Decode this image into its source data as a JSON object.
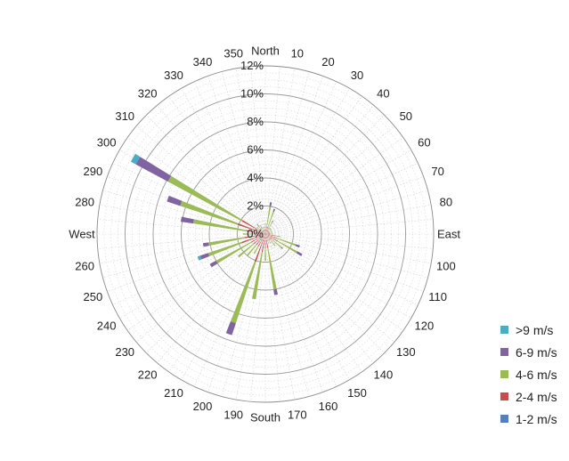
{
  "chart_data": {
    "type": "wind-rose",
    "title": "",
    "radial_unit": "%",
    "radial_range": [
      0,
      12
    ],
    "radial_ticks": [
      "0%",
      "2%",
      "4%",
      "6%",
      "8%",
      "10%",
      "12%"
    ],
    "direction_labels": [
      "North",
      "10",
      "20",
      "30",
      "40",
      "50",
      "60",
      "70",
      "80",
      "East",
      "100",
      "110",
      "120",
      "130",
      "140",
      "150",
      "160",
      "170",
      "South",
      "190",
      "200",
      "210",
      "220",
      "230",
      "240",
      "250",
      "260",
      "West",
      "280",
      "290",
      "300",
      "310",
      "320",
      "330",
      "340",
      "350"
    ],
    "legend_position": "right",
    "series": [
      {
        "name": "1-2 m/s",
        "color": "#4F81BD"
      },
      {
        "name": "2-4 m/s",
        "color": "#C0504D"
      },
      {
        "name": "4-6 m/s",
        "color": "#9BBB59"
      },
      {
        "name": "6-9 m/s",
        "color": "#8064A2"
      },
      {
        "name": ">9 m/s",
        "color": "#4BACC6"
      }
    ],
    "legend_order": [
      ">9 m/s",
      "6-9 m/s",
      "4-6 m/s",
      "2-4 m/s",
      "1-2 m/s"
    ],
    "bars": [
      {
        "dir": 0,
        "values": [
          0.0,
          0.5,
          0.3,
          0.0,
          0.0
        ]
      },
      {
        "dir": 10,
        "values": [
          0.0,
          0.5,
          1.5,
          0.3,
          0.0
        ]
      },
      {
        "dir": 20,
        "values": [
          0.0,
          0.6,
          1.1,
          0.2,
          0.0
        ]
      },
      {
        "dir": 30,
        "values": [
          0.0,
          0.5,
          0.5,
          0.1,
          0.0
        ]
      },
      {
        "dir": 40,
        "values": [
          0.0,
          0.3,
          0.3,
          0.0,
          0.0
        ]
      },
      {
        "dir": 50,
        "values": [
          0.0,
          0.3,
          0.3,
          0.0,
          0.0
        ]
      },
      {
        "dir": 60,
        "values": [
          0.0,
          0.3,
          0.2,
          0.0,
          0.0
        ]
      },
      {
        "dir": 70,
        "values": [
          0.0,
          0.3,
          0.2,
          0.0,
          0.0
        ]
      },
      {
        "dir": 80,
        "values": [
          0.0,
          0.3,
          0.2,
          0.0,
          0.0
        ]
      },
      {
        "dir": 90,
        "values": [
          0.0,
          0.4,
          0.2,
          0.0,
          0.0
        ]
      },
      {
        "dir": 100,
        "values": [
          0.1,
          0.6,
          0.4,
          0.0,
          0.0
        ]
      },
      {
        "dir": 110,
        "values": [
          0.1,
          0.8,
          1.4,
          0.3,
          0.0
        ]
      },
      {
        "dir": 120,
        "values": [
          0.1,
          0.9,
          1.6,
          0.4,
          0.0
        ]
      },
      {
        "dir": 130,
        "values": [
          0.0,
          0.6,
          0.9,
          0.1,
          0.0
        ]
      },
      {
        "dir": 140,
        "values": [
          0.0,
          0.5,
          0.6,
          0.0,
          0.0
        ]
      },
      {
        "dir": 150,
        "values": [
          0.0,
          0.4,
          0.4,
          0.0,
          0.0
        ]
      },
      {
        "dir": 160,
        "values": [
          0.0,
          0.4,
          0.3,
          0.0,
          0.0
        ]
      },
      {
        "dir": 170,
        "values": [
          0.0,
          1.0,
          3.0,
          0.4,
          0.0
        ]
      },
      {
        "dir": 180,
        "values": [
          0.0,
          1.0,
          0.9,
          0.0,
          0.0
        ]
      },
      {
        "dir": 190,
        "values": [
          0.1,
          1.2,
          3.4,
          0.0,
          0.0
        ]
      },
      {
        "dir": 200,
        "values": [
          0.1,
          2.0,
          4.6,
          0.9,
          0.0
        ]
      },
      {
        "dir": 210,
        "values": [
          0.0,
          1.0,
          0.6,
          0.0,
          0.0
        ]
      },
      {
        "dir": 220,
        "values": [
          0.0,
          1.0,
          1.0,
          0.0,
          0.0
        ]
      },
      {
        "dir": 230,
        "values": [
          0.1,
          1.0,
          1.4,
          0.0,
          0.0
        ]
      },
      {
        "dir": 240,
        "values": [
          0.2,
          1.0,
          2.8,
          0.5,
          0.0
        ]
      },
      {
        "dir": 250,
        "values": [
          0.2,
          1.6,
          2.5,
          0.6,
          0.2
        ]
      },
      {
        "dir": 260,
        "values": [
          0.1,
          1.4,
          2.6,
          0.4,
          0.0
        ]
      },
      {
        "dir": 270,
        "values": [
          0.0,
          0.8,
          0.8,
          0.0,
          0.0
        ]
      },
      {
        "dir": 280,
        "values": [
          0.1,
          1.3,
          3.8,
          0.9,
          0.0
        ]
      },
      {
        "dir": 290,
        "values": [
          0.1,
          2.0,
          4.3,
          1.0,
          0.0
        ]
      },
      {
        "dir": 300,
        "values": [
          0.1,
          1.8,
          6.0,
          2.6,
          0.4
        ]
      },
      {
        "dir": 310,
        "values": [
          0.0,
          0.3,
          0.5,
          0.0,
          0.0
        ]
      },
      {
        "dir": 320,
        "values": [
          0.0,
          0.3,
          0.4,
          0.2,
          0.0
        ]
      },
      {
        "dir": 330,
        "values": [
          0.0,
          0.3,
          0.2,
          0.2,
          0.0
        ]
      },
      {
        "dir": 340,
        "values": [
          0.0,
          0.3,
          0.2,
          0.0,
          0.0
        ]
      },
      {
        "dir": 350,
        "values": [
          0.0,
          0.3,
          0.2,
          0.0,
          0.0
        ]
      }
    ]
  }
}
